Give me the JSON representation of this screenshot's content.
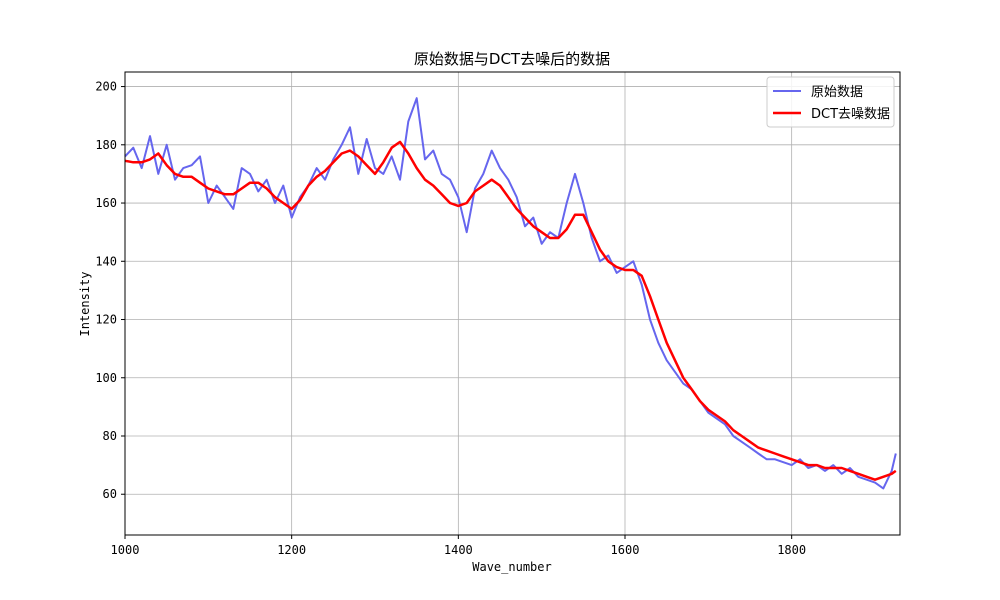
{
  "chart_data": {
    "type": "line",
    "title": "原始数据与DCT去噪后的数据",
    "xlabel": "Wave_number",
    "ylabel": "Intensity",
    "xlim": [
      1000,
      1930
    ],
    "ylim": [
      46,
      205
    ],
    "xticks": [
      1000,
      1200,
      1400,
      1600,
      1800
    ],
    "yticks": [
      60,
      80,
      100,
      120,
      140,
      160,
      180,
      200
    ],
    "grid": true,
    "legend_position": "top-right",
    "x": [
      1000,
      1010,
      1020,
      1030,
      1040,
      1050,
      1060,
      1070,
      1080,
      1090,
      1100,
      1110,
      1120,
      1130,
      1140,
      1150,
      1160,
      1170,
      1180,
      1190,
      1200,
      1210,
      1220,
      1230,
      1240,
      1250,
      1260,
      1270,
      1280,
      1290,
      1300,
      1310,
      1320,
      1330,
      1340,
      1350,
      1360,
      1370,
      1380,
      1390,
      1400,
      1410,
      1420,
      1430,
      1440,
      1450,
      1460,
      1470,
      1480,
      1490,
      1500,
      1510,
      1520,
      1530,
      1540,
      1550,
      1560,
      1570,
      1580,
      1590,
      1600,
      1610,
      1620,
      1630,
      1640,
      1650,
      1660,
      1670,
      1680,
      1690,
      1700,
      1710,
      1720,
      1730,
      1740,
      1750,
      1760,
      1770,
      1780,
      1790,
      1800,
      1810,
      1820,
      1830,
      1840,
      1850,
      1860,
      1870,
      1880,
      1890,
      1900,
      1910,
      1920,
      1925
    ],
    "series": [
      {
        "name": "原始数据",
        "color": "#6666ee",
        "values": [
          176,
          179,
          172,
          183,
          170,
          180,
          168,
          172,
          173,
          176,
          160,
          166,
          162,
          158,
          172,
          170,
          164,
          168,
          160,
          166,
          155,
          162,
          166,
          172,
          168,
          175,
          180,
          186,
          170,
          182,
          172,
          170,
          176,
          168,
          188,
          196,
          175,
          178,
          170,
          168,
          162,
          150,
          165,
          170,
          178,
          172,
          168,
          162,
          152,
          155,
          146,
          150,
          148,
          160,
          170,
          160,
          148,
          140,
          142,
          136,
          138,
          140,
          132,
          120,
          112,
          106,
          102,
          98,
          96,
          92,
          88,
          86,
          84,
          80,
          78,
          76,
          74,
          72,
          72,
          71,
          70,
          72,
          69,
          70,
          68,
          70,
          67,
          69,
          66,
          65,
          64,
          62,
          68,
          74
        ],
        "width": 2
      },
      {
        "name": "DCT去噪数据",
        "color": "#ff0000",
        "values": [
          174.5,
          174,
          174,
          175,
          177,
          173,
          170,
          169,
          169,
          167,
          165,
          164,
          163,
          163,
          165,
          167,
          167,
          165,
          162,
          160,
          158,
          161,
          166,
          169,
          171,
          174,
          177,
          178,
          176,
          173,
          170,
          174,
          179,
          181,
          177,
          172,
          168,
          166,
          163,
          160,
          159,
          160,
          164,
          166,
          168,
          166,
          162,
          158,
          155,
          152,
          150,
          148,
          148,
          151,
          156,
          156,
          150,
          144,
          140,
          138,
          137,
          137,
          135,
          128,
          120,
          112,
          106,
          100,
          96,
          92,
          89,
          87,
          85,
          82,
          80,
          78,
          76,
          75,
          74,
          73,
          72,
          71,
          70,
          70,
          69,
          69,
          69,
          68,
          67,
          66,
          65,
          66,
          67,
          68
        ],
        "width": 2.5
      }
    ]
  }
}
